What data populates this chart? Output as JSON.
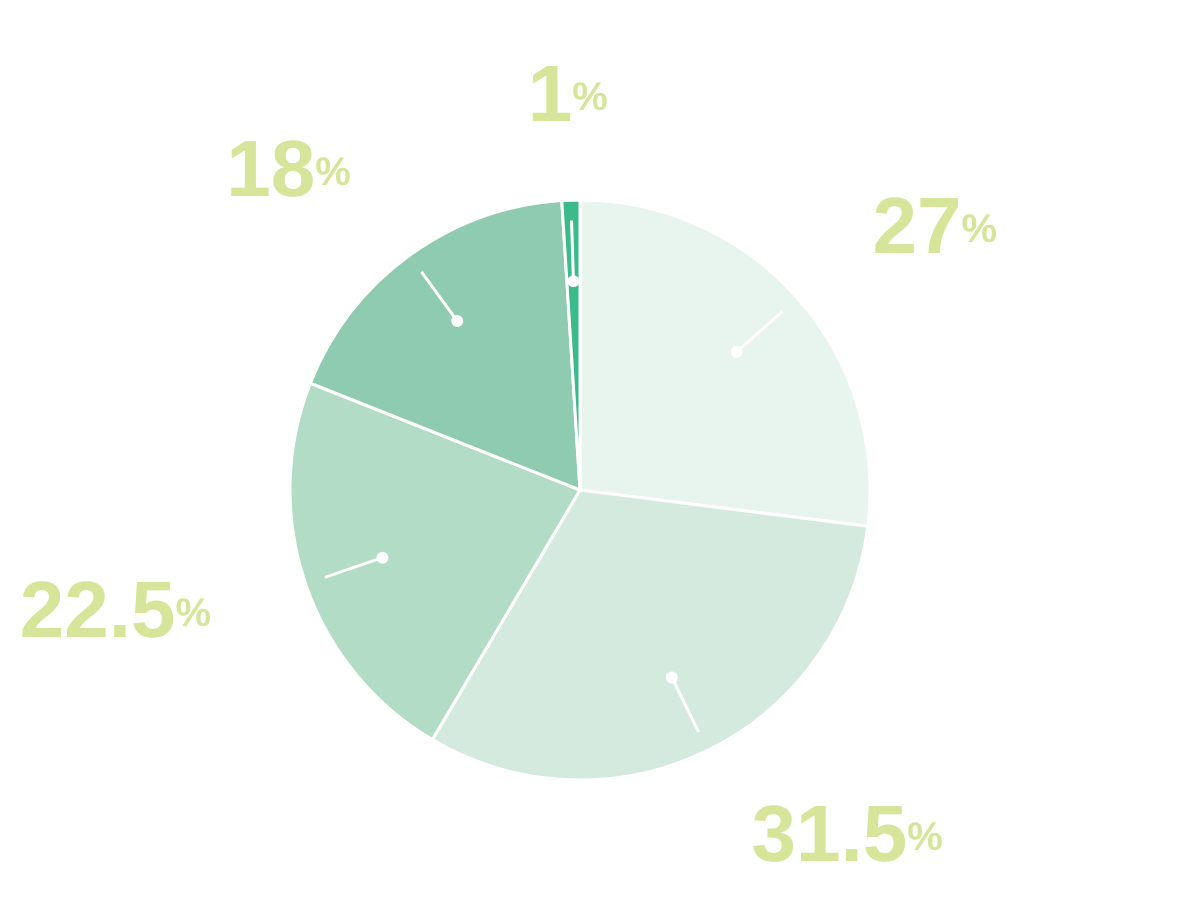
{
  "chart_data": {
    "type": "pie",
    "categories": [
      null,
      null,
      null,
      null,
      null
    ],
    "values": [
      27,
      31.5,
      22.5,
      18,
      1
    ],
    "colors": [
      "#e8f4ee",
      "#d4eadf",
      "#b3dcc6",
      "#8fcbb0",
      "#3dba8a"
    ],
    "value_labels": [
      "27%",
      "31.5%",
      "22.5%",
      "18%",
      "1%"
    ]
  }
}
